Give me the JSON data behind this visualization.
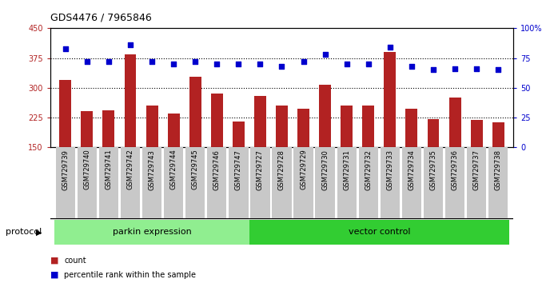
{
  "title": "GDS4476 / 7965846",
  "samples": [
    "GSM729739",
    "GSM729740",
    "GSM729741",
    "GSM729742",
    "GSM729743",
    "GSM729744",
    "GSM729745",
    "GSM729746",
    "GSM729747",
    "GSM729727",
    "GSM729728",
    "GSM729729",
    "GSM729730",
    "GSM729731",
    "GSM729732",
    "GSM729733",
    "GSM729734",
    "GSM729735",
    "GSM729736",
    "GSM729737",
    "GSM729738"
  ],
  "counts": [
    320,
    240,
    242,
    385,
    255,
    235,
    328,
    285,
    215,
    280,
    255,
    248,
    307,
    255,
    255,
    390,
    248,
    220,
    275,
    218,
    213
  ],
  "percentile_ranks": [
    83,
    72,
    72,
    86,
    72,
    70,
    72,
    70,
    70,
    70,
    68,
    72,
    78,
    70,
    70,
    84,
    68,
    65,
    66,
    66,
    65
  ],
  "group1_label": "parkin expression",
  "group2_label": "vector control",
  "group1_count": 9,
  "group2_count": 12,
  "protocol_label": "protocol",
  "ylim_left": [
    150,
    450
  ],
  "ylim_right": [
    0,
    100
  ],
  "yticks_left": [
    150,
    225,
    300,
    375,
    450
  ],
  "yticks_right": [
    0,
    25,
    50,
    75,
    100
  ],
  "bar_color": "#B22222",
  "dot_color": "#0000CD",
  "group1_bg": "#90EE90",
  "group2_bg": "#32CD32",
  "xticklabel_bg": "#C8C8C8",
  "legend_count_label": "count",
  "legend_pct_label": "percentile rank within the sample"
}
